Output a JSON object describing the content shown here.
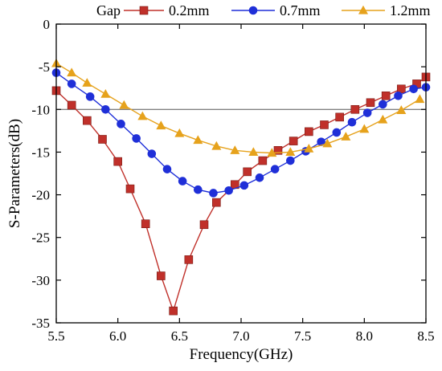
{
  "chart_data": {
    "type": "line",
    "xlabel": "Frequency(GHz)",
    "ylabel": "S-Parameters(dB)",
    "xlim": [
      5.5,
      8.5
    ],
    "ylim": [
      -35,
      0
    ],
    "xticks": [
      "5.5",
      "6.0",
      "6.5",
      "7.0",
      "7.5",
      "8.0",
      "8.5"
    ],
    "yticks": [
      "0",
      "-5",
      "-10",
      "-15",
      "-20",
      "-25",
      "-30",
      "-35"
    ],
    "reference_line": -10,
    "grid": false,
    "legend": {
      "title": "Gap",
      "position": "top"
    },
    "series": [
      {
        "name": "0.2mm",
        "color": "#c0302a",
        "marker": "square",
        "x": [
          5.5,
          5.625,
          5.75,
          5.875,
          6.0,
          6.1,
          6.225,
          6.35,
          6.45,
          6.575,
          6.7,
          6.8,
          6.95,
          7.05,
          7.175,
          7.3,
          7.425,
          7.55,
          7.675,
          7.8,
          7.925,
          8.05,
          8.175,
          8.3,
          8.425,
          8.5
        ],
        "values": [
          -7.8,
          -9.5,
          -11.3,
          -13.5,
          -16.1,
          -19.3,
          -23.4,
          -29.5,
          -33.6,
          -27.6,
          -23.5,
          -20.9,
          -18.8,
          -17.3,
          -16.0,
          -14.8,
          -13.7,
          -12.6,
          -11.8,
          -10.9,
          -10.0,
          -9.2,
          -8.4,
          -7.6,
          -7.0,
          -6.2
        ]
      },
      {
        "name": "0.7mm",
        "color": "#1f2fd8",
        "marker": "circle",
        "x": [
          5.5,
          5.625,
          5.775,
          5.9,
          6.025,
          6.15,
          6.275,
          6.4,
          6.525,
          6.65,
          6.775,
          6.9,
          7.025,
          7.15,
          7.275,
          7.4,
          7.525,
          7.65,
          7.775,
          7.9,
          8.025,
          8.15,
          8.275,
          8.4,
          8.5
        ],
        "values": [
          -5.7,
          -7.0,
          -8.5,
          -10.0,
          -11.7,
          -13.4,
          -15.2,
          -17.0,
          -18.4,
          -19.4,
          -19.8,
          -19.5,
          -18.9,
          -18.0,
          -17.0,
          -16.0,
          -14.9,
          -13.8,
          -12.7,
          -11.5,
          -10.4,
          -9.4,
          -8.4,
          -7.6,
          -7.4
        ]
      },
      {
        "name": "1.2mm",
        "color": "#e6a21c",
        "marker": "triangle",
        "x": [
          5.5,
          5.625,
          5.75,
          5.9,
          6.05,
          6.2,
          6.35,
          6.5,
          6.65,
          6.8,
          6.95,
          7.1,
          7.25,
          7.4,
          7.55,
          7.7,
          7.85,
          8.0,
          8.15,
          8.3,
          8.45
        ],
        "values": [
          -4.6,
          -5.7,
          -6.9,
          -8.2,
          -9.5,
          -10.8,
          -11.9,
          -12.8,
          -13.6,
          -14.3,
          -14.8,
          -15.0,
          -15.1,
          -15.0,
          -14.6,
          -14.0,
          -13.2,
          -12.3,
          -11.2,
          -10.1,
          -8.8
        ]
      }
    ]
  }
}
